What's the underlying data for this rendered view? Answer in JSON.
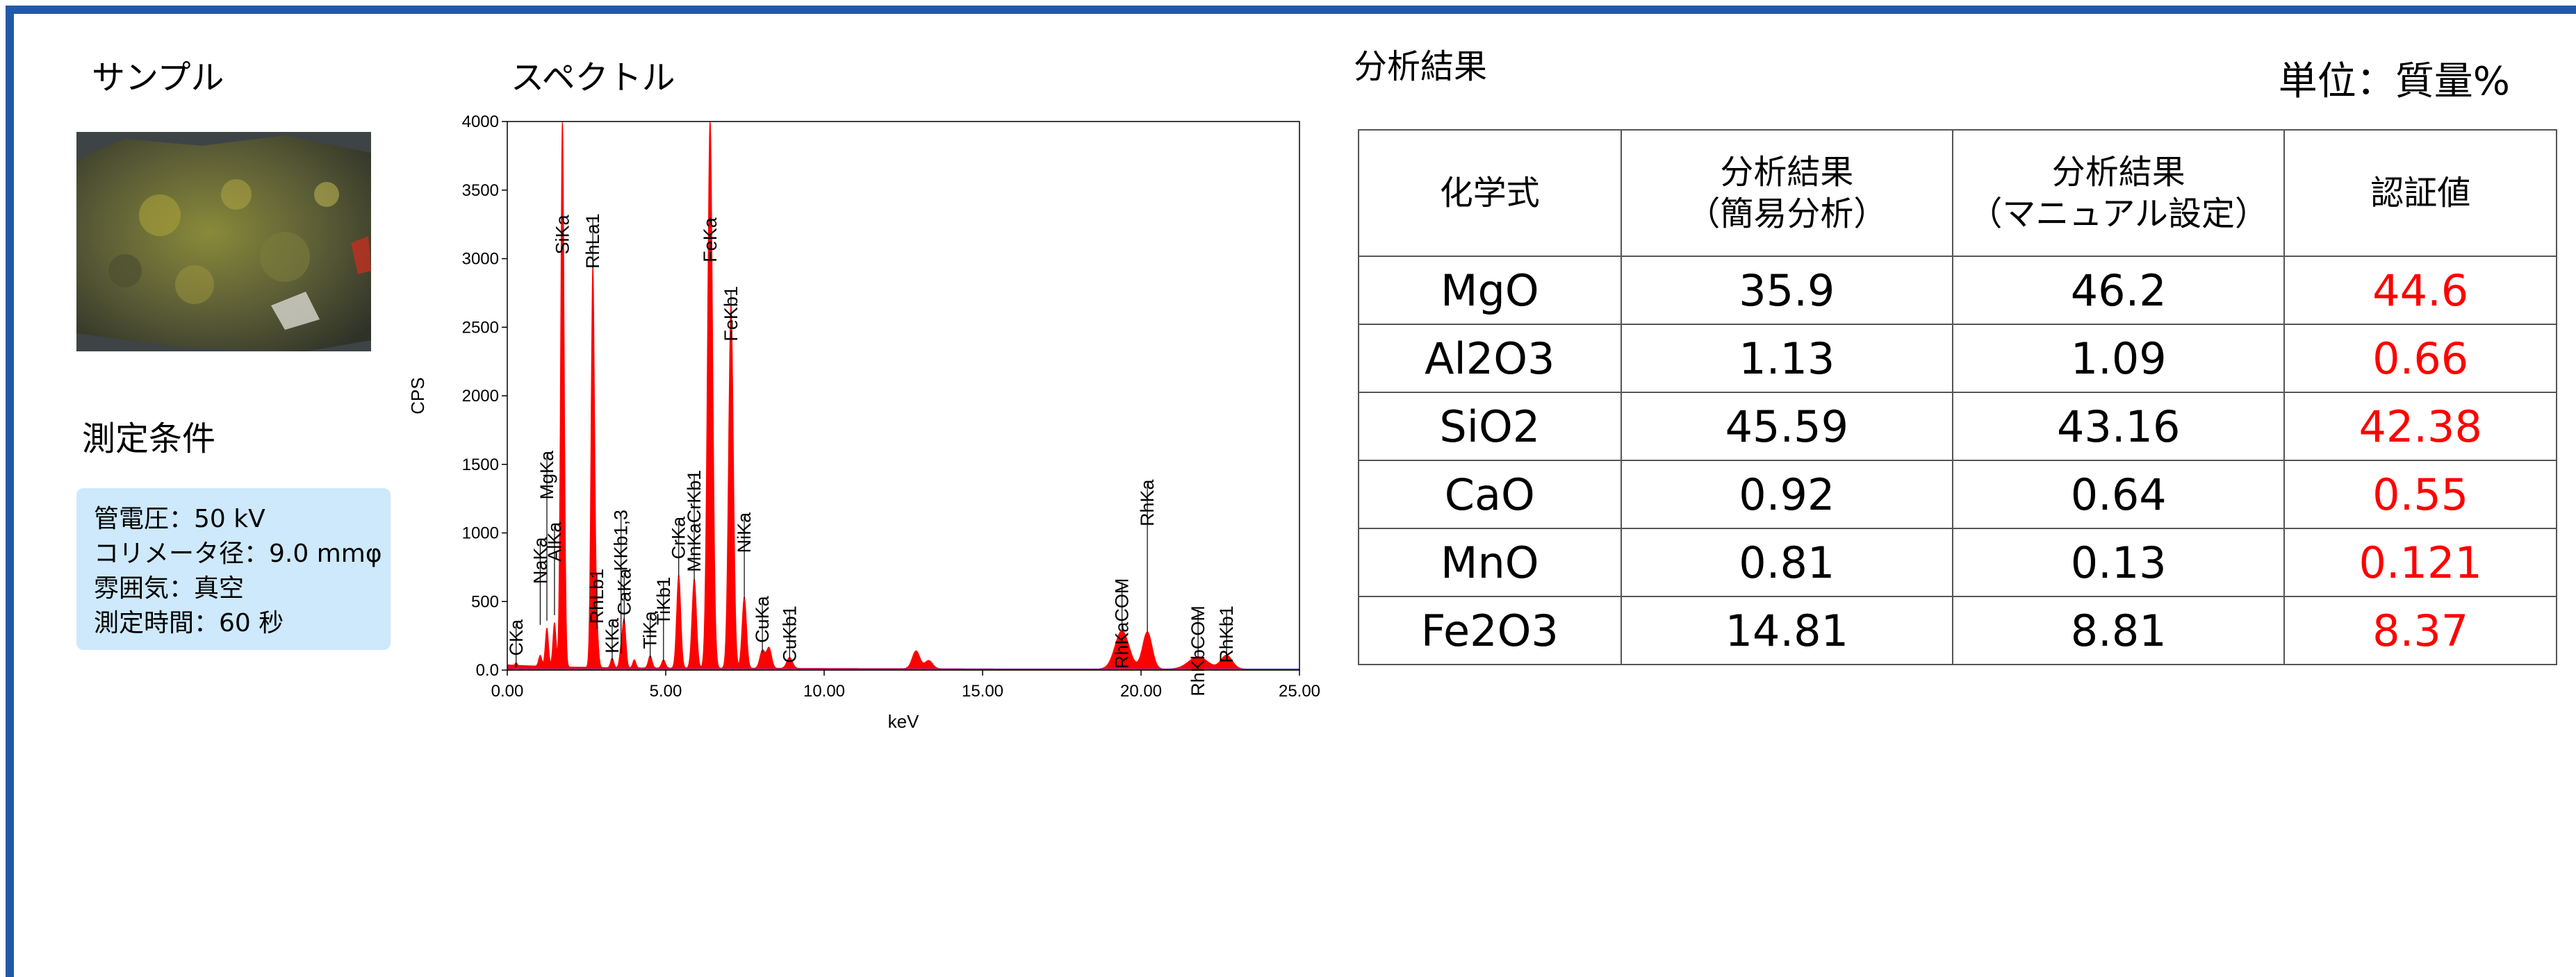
{
  "sample": {
    "heading": "サンプル"
  },
  "conditions": {
    "heading": "測定条件",
    "lines": [
      "管電圧：50 kV",
      "コリメータ径：9.0 mmφ",
      "雰囲気：真空",
      "測定時間：60 秒"
    ]
  },
  "results": {
    "heading": "分析結果",
    "unit": "単位：質量%",
    "columns": [
      {
        "line1": "化学式",
        "line2": ""
      },
      {
        "line1": "分析結果",
        "line2": "（簡易分析）"
      },
      {
        "line1": "分析結果",
        "line2": "（マニュアル設定）"
      },
      {
        "line1": "認証値",
        "line2": ""
      }
    ],
    "rows": [
      {
        "formula": "MgO",
        "simple": "35.9",
        "manual": "46.2",
        "certified": "44.6"
      },
      {
        "formula": "Al2O3",
        "simple": "1.13",
        "manual": "1.09",
        "certified": "0.66"
      },
      {
        "formula": "SiO2",
        "simple": "45.59",
        "manual": "43.16",
        "certified": "42.38"
      },
      {
        "formula": "CaO",
        "simple": "0.92",
        "manual": "0.64",
        "certified": "0.55"
      },
      {
        "formula": "MnO",
        "simple": "0.81",
        "manual": "0.13",
        "certified": "0.121"
      },
      {
        "formula": "Fe2O3",
        "simple": "14.81",
        "manual": "8.81",
        "certified": "8.37"
      }
    ]
  },
  "chart_data": {
    "type": "line",
    "title": "スペクトル",
    "xlabel": "keV",
    "ylabel": "CPS",
    "xlim": [
      0,
      25
    ],
    "ylim": [
      0,
      4000
    ],
    "xticks": [
      0,
      5,
      10,
      15,
      20,
      25
    ],
    "xtick_labels": [
      "0.00",
      "5.00",
      "10.00",
      "15.00",
      "20.00",
      "25.00"
    ],
    "yticks": [
      0,
      500,
      1000,
      1500,
      2000,
      2500,
      3000,
      3500,
      4000
    ],
    "ytick_labels": [
      "0.0",
      "500",
      "1000",
      "1500",
      "2000",
      "2500",
      "3000",
      "3500",
      "4000"
    ],
    "grid": false,
    "fill_color": "#ff0000",
    "baseline_color": "#4040ff",
    "peaks": [
      {
        "kev": 0.28,
        "cps": 20,
        "w": 0.03
      },
      {
        "kev": 1.04,
        "cps": 80,
        "w": 0.05
      },
      {
        "kev": 1.25,
        "cps": 280,
        "w": 0.05
      },
      {
        "kev": 1.49,
        "cps": 320,
        "w": 0.05
      },
      {
        "kev": 1.74,
        "cps": 4000,
        "w": 0.055
      },
      {
        "kev": 2.7,
        "cps": 2930,
        "w": 0.055
      },
      {
        "kev": 2.83,
        "cps": 250,
        "w": 0.05
      },
      {
        "kev": 3.31,
        "cps": 70,
        "w": 0.05
      },
      {
        "kev": 3.59,
        "cps": 120,
        "w": 0.05
      },
      {
        "kev": 3.69,
        "cps": 340,
        "w": 0.055
      },
      {
        "kev": 4.01,
        "cps": 60,
        "w": 0.05
      },
      {
        "kev": 4.51,
        "cps": 90,
        "w": 0.06
      },
      {
        "kev": 4.93,
        "cps": 60,
        "w": 0.06
      },
      {
        "kev": 5.41,
        "cps": 680,
        "w": 0.065
      },
      {
        "kev": 5.9,
        "cps": 650,
        "w": 0.07
      },
      {
        "kev": 6.4,
        "cps": 4000,
        "w": 0.08
      },
      {
        "kev": 7.06,
        "cps": 2660,
        "w": 0.075
      },
      {
        "kev": 7.48,
        "cps": 520,
        "w": 0.07
      },
      {
        "kev": 8.05,
        "cps": 130,
        "w": 0.08
      },
      {
        "kev": 8.26,
        "cps": 150,
        "w": 0.08
      },
      {
        "kev": 8.91,
        "cps": 80,
        "w": 0.09
      },
      {
        "kev": 12.9,
        "cps": 130,
        "w": 0.12
      },
      {
        "kev": 13.3,
        "cps": 60,
        "w": 0.12
      },
      {
        "kev": 19.4,
        "cps": 280,
        "w": 0.22
      },
      {
        "kev": 20.2,
        "cps": 270,
        "w": 0.15
      },
      {
        "kev": 21.8,
        "cps": 90,
        "w": 0.3
      },
      {
        "kev": 22.7,
        "cps": 100,
        "w": 0.18
      }
    ],
    "annotations": [
      {
        "label": "CKa",
        "kev": 0.28,
        "label_cps": 370,
        "tip_cps": 20
      },
      {
        "label": "NaKa",
        "kev": 1.04,
        "label_cps": 970,
        "tip_cps": 330
      },
      {
        "label": "AlKa",
        "kev": 1.49,
        "label_cps": 1080,
        "tip_cps": 400
      },
      {
        "label": "MgKa",
        "kev": 1.25,
        "label_cps": 1600,
        "tip_cps": 360
      },
      {
        "label": "SiKa",
        "kev": 1.74,
        "label_cps": 3320,
        "tip_cps": 3300
      },
      {
        "label": "RhLa1",
        "kev": 2.7,
        "label_cps": 3330,
        "tip_cps": 2930
      },
      {
        "label": "RhLb1",
        "kev": 2.83,
        "label_cps": 740,
        "tip_cps": 300
      },
      {
        "label": "KKa",
        "kev": 3.31,
        "label_cps": 380,
        "tip_cps": 70
      },
      {
        "label": "CaKa",
        "kev": 3.69,
        "label_cps": 740,
        "tip_cps": 340
      },
      {
        "label": "KKb1,3",
        "kev": 3.59,
        "label_cps": 1170,
        "tip_cps": 120
      },
      {
        "label": "TiKa",
        "kev": 4.51,
        "label_cps": 430,
        "tip_cps": 90
      },
      {
        "label": "TiKb1",
        "kev": 4.93,
        "label_cps": 680,
        "tip_cps": 60
      },
      {
        "label": "CrKa",
        "kev": 5.41,
        "label_cps": 1120,
        "tip_cps": 680
      },
      {
        "label": "MnKaCrKb1",
        "kev": 5.9,
        "label_cps": 1460,
        "tip_cps": 650
      },
      {
        "label": "FeKa",
        "kev": 6.4,
        "label_cps": 3300,
        "tip_cps": 3300
      },
      {
        "label": "FeKb1",
        "kev": 7.06,
        "label_cps": 2800,
        "tip_cps": 2660
      },
      {
        "label": "NiKa",
        "kev": 7.48,
        "label_cps": 1150,
        "tip_cps": 520
      },
      {
        "label": "CuKa",
        "kev": 8.05,
        "label_cps": 540,
        "tip_cps": 130
      },
      {
        "label": "CuKb1",
        "kev": 8.91,
        "label_cps": 470,
        "tip_cps": 80
      },
      {
        "label": "RhKaCOM",
        "kev": 19.4,
        "label_cps": 670,
        "tip_cps": 280
      },
      {
        "label": "RhKa",
        "kev": 20.2,
        "label_cps": 1390,
        "tip_cps": 270
      },
      {
        "label": "RhKbCOM",
        "kev": 21.8,
        "label_cps": 470,
        "tip_cps": 90
      },
      {
        "label": "RhKb1",
        "kev": 22.7,
        "label_cps": 470,
        "tip_cps": 100
      }
    ]
  }
}
